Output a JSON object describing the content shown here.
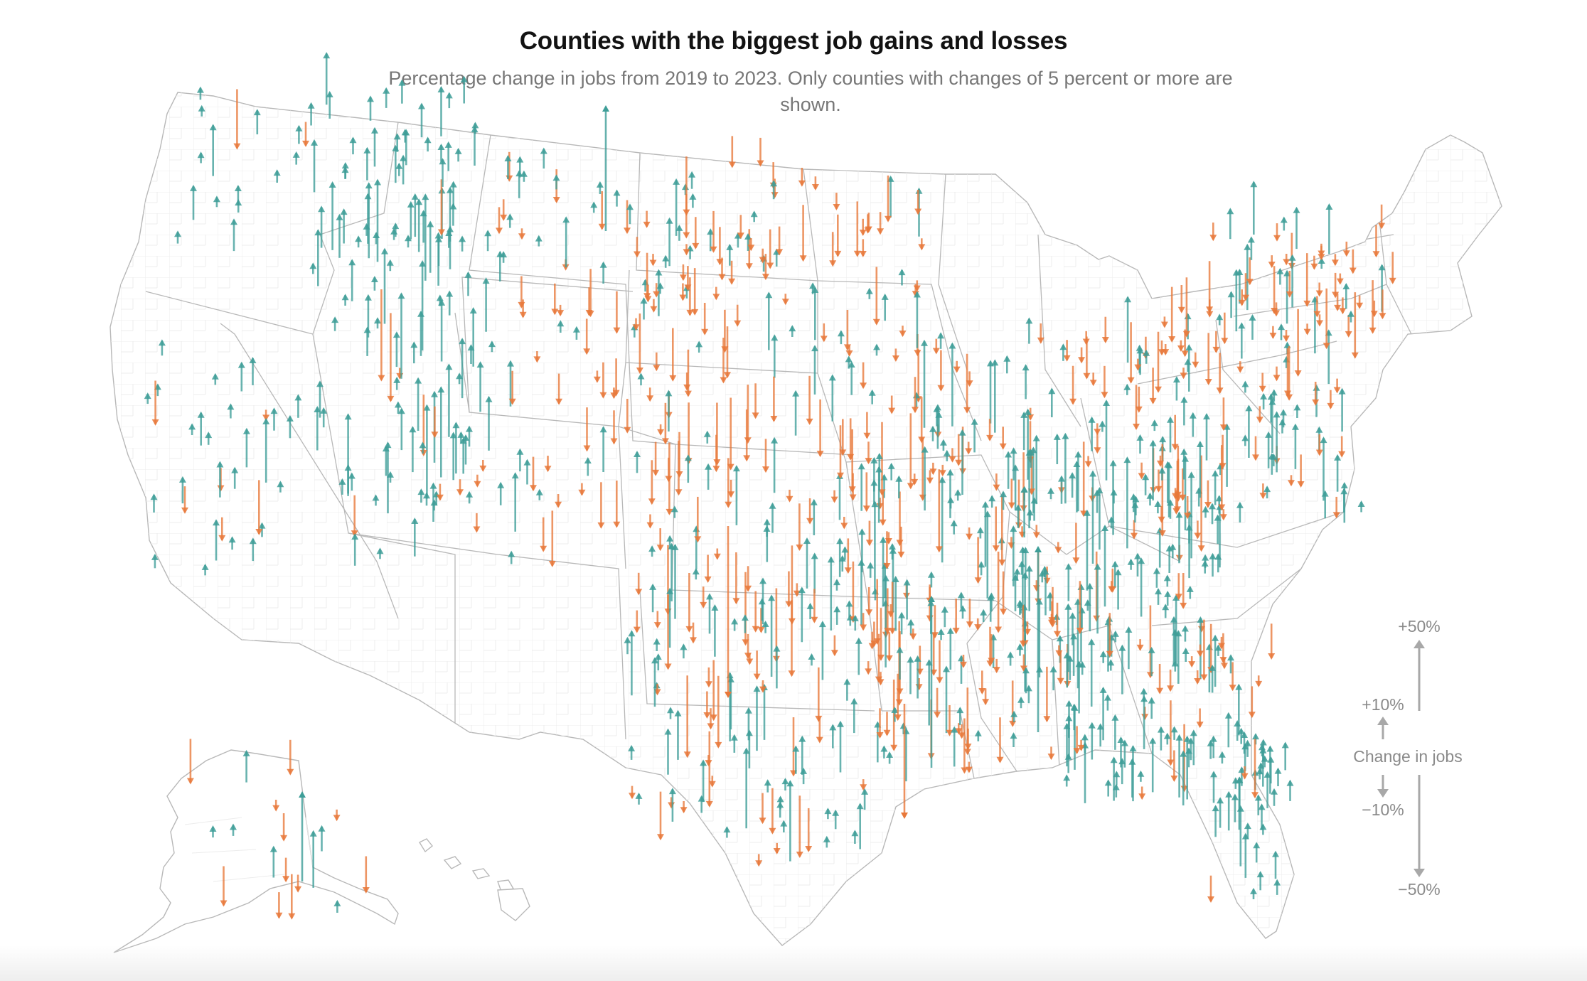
{
  "map": {
    "title": "Counties with the biggest job gains and losses",
    "subtitle": "Percentage change in jobs from 2019 to 2023. Only counties with changes of 5 percent or more are shown.",
    "colors": {
      "gain": "#3e9e98",
      "loss": "#e8783a",
      "border": "#b5b5b5",
      "county": "#e6e6e6",
      "legend": "#a8a8a8"
    },
    "legend": {
      "title": "Change in jobs",
      "labels": {
        "plus50": "+50%",
        "plus10": "+10%",
        "minus10": "−10%",
        "minus50": "−50%"
      }
    }
  }
}
